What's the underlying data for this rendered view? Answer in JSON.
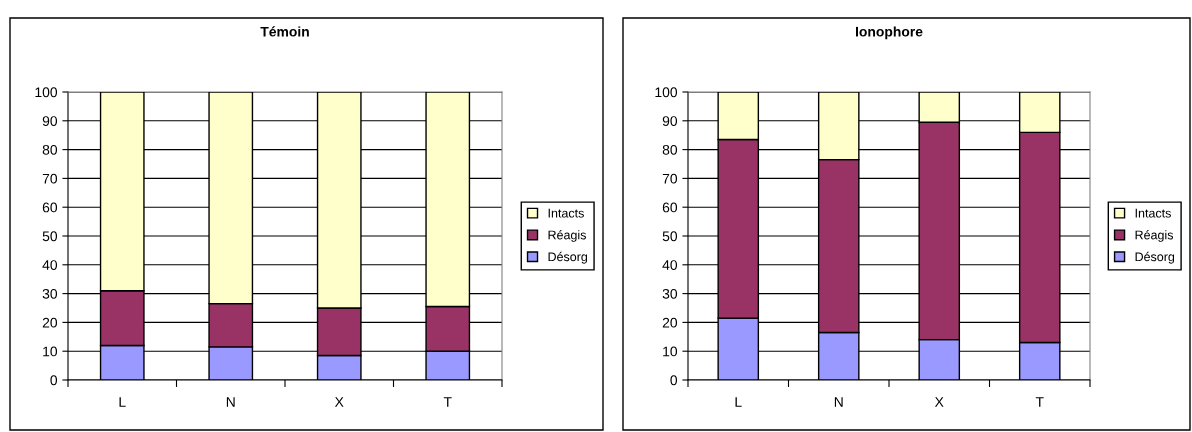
{
  "chart_data": [
    {
      "type": "bar",
      "title": "Témoin",
      "categories": [
        "L",
        "N",
        "X",
        "T"
      ],
      "stacked": true,
      "grid": "y",
      "legend": "right",
      "ylim": [
        0,
        100
      ],
      "yticks": [
        0,
        10,
        20,
        30,
        40,
        50,
        60,
        70,
        80,
        90,
        100
      ],
      "series": [
        {
          "name": "Désorg",
          "color": "#9999ff",
          "values": [
            12,
            11.5,
            8.5,
            10
          ]
        },
        {
          "name": "Réagis",
          "color": "#993366",
          "values": [
            19,
            15,
            16.5,
            15.5
          ]
        },
        {
          "name": "Intacts",
          "color": "#ffffcc",
          "values": [
            69,
            73.5,
            75,
            74.5
          ]
        }
      ]
    },
    {
      "type": "bar",
      "title": "Ionophore",
      "categories": [
        "L",
        "N",
        "X",
        "T"
      ],
      "stacked": true,
      "grid": "y",
      "legend": "right",
      "ylim": [
        0,
        100
      ],
      "yticks": [
        0,
        10,
        20,
        30,
        40,
        50,
        60,
        70,
        80,
        90,
        100
      ],
      "series": [
        {
          "name": "Désorg",
          "color": "#9999ff",
          "values": [
            21.5,
            16.5,
            14,
            13
          ]
        },
        {
          "name": "Réagis",
          "color": "#993366",
          "values": [
            62,
            60,
            75.5,
            73
          ]
        },
        {
          "name": "Intacts",
          "color": "#ffffcc",
          "values": [
            16.5,
            23.5,
            10.5,
            14
          ]
        }
      ]
    }
  ]
}
